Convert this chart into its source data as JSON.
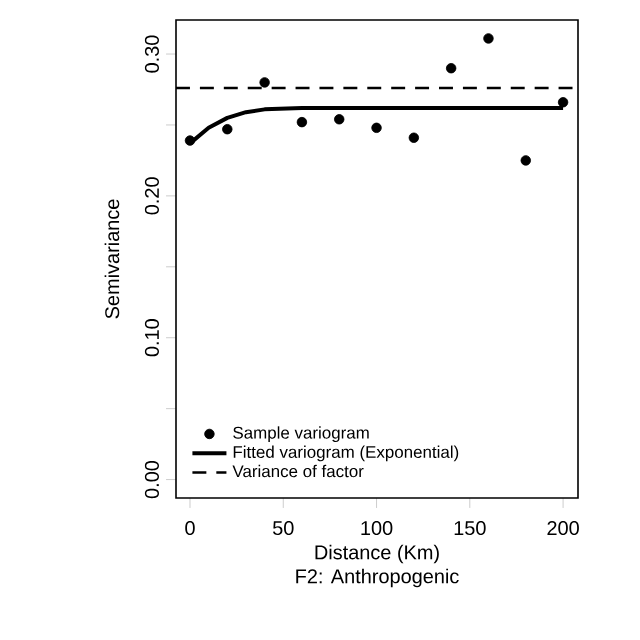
{
  "chart_data": {
    "type": "scatter",
    "title": "F2: Anthropogenic",
    "xlabel": "Distance (Km)",
    "ylabel": "Semivariance",
    "xlim": [
      -7.5,
      208
    ],
    "xticks": [
      0,
      50,
      100,
      150,
      200
    ],
    "ylim": [
      -0.013,
      0.324
    ],
    "yticks": [
      {
        "value": 0.0,
        "label": "0.00"
      },
      {
        "value": 0.05,
        "label": null
      },
      {
        "value": 0.1,
        "label": "0.10"
      },
      {
        "value": 0.15,
        "label": null
      },
      {
        "value": 0.2,
        "label": "0.20"
      },
      {
        "value": 0.25,
        "label": null
      },
      {
        "value": 0.3,
        "label": "0.30"
      }
    ],
    "legend": "bottom left",
    "grid": false,
    "series": [
      {
        "name": "Sample variogram",
        "marker": "circle",
        "color": "#000000",
        "x": [
          0,
          20,
          40,
          60,
          80,
          100,
          120,
          140,
          160,
          180,
          200
        ],
        "values": [
          0.239,
          0.247,
          0.28,
          0.252,
          0.254,
          0.248,
          0.241,
          0.29,
          0.311,
          0.225,
          0.266
        ]
      },
      {
        "name": "Fitted variogram (Exponential)",
        "type": "line",
        "marker": "none",
        "line_style": "solid",
        "color": "#000000",
        "x": [
          0,
          10,
          20,
          30,
          40,
          60,
          80,
          200
        ],
        "values": [
          0.237,
          0.248,
          0.255,
          0.259,
          0.261,
          0.262,
          0.262,
          0.262
        ]
      }
    ],
    "ref_lines": [
      {
        "axis": "y",
        "value": 0.276,
        "label": "Variance of factor",
        "line_style": "dashed",
        "color": "#000000"
      }
    ]
  }
}
